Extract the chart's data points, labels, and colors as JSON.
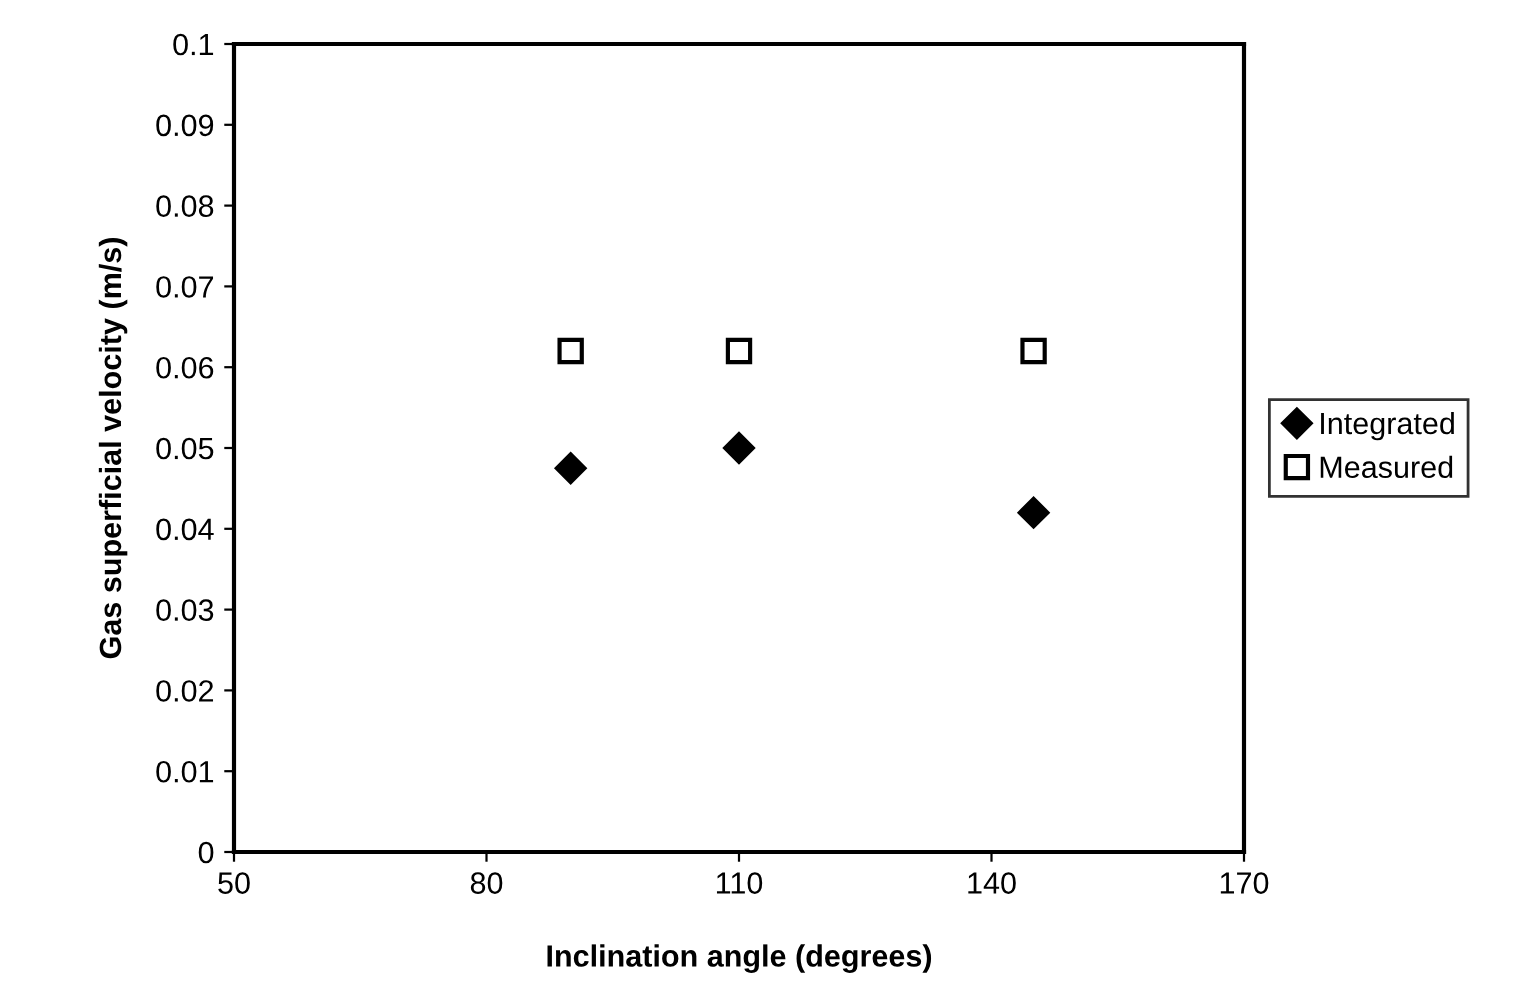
{
  "chart_data": {
    "type": "scatter",
    "xlabel": "Inclination angle (degrees)",
    "ylabel": "Gas superficial velocity (m/s)",
    "xlim": [
      50,
      170
    ],
    "xticks": [
      50,
      80,
      110,
      140,
      170
    ],
    "ylim": [
      0,
      0.1
    ],
    "yticks": [
      0,
      0.01,
      0.02,
      0.03,
      0.04,
      0.05,
      0.06,
      0.07,
      0.08,
      0.09,
      0.1
    ],
    "grid": false,
    "legend": "right",
    "series": [
      {
        "name": "Integrated",
        "color": "#000000",
        "marker": "diamond",
        "x": [
          90,
          110,
          145
        ],
        "values": [
          0.0475,
          0.05,
          0.042
        ]
      },
      {
        "name": "Measured",
        "color": "#000000",
        "marker": "square",
        "x": [
          90,
          110,
          145
        ],
        "values": [
          0.062,
          0.062,
          0.062
        ]
      }
    ]
  }
}
